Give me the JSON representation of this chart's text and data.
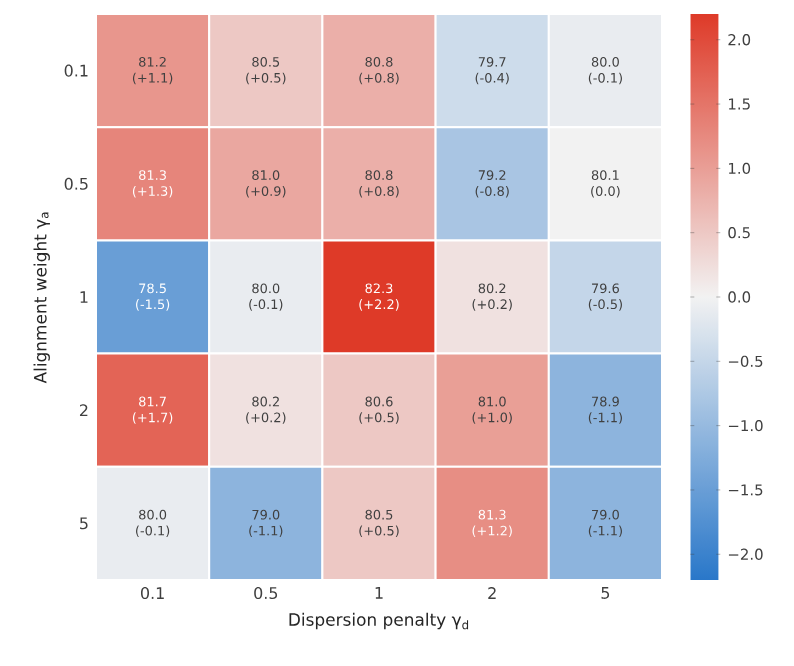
{
  "chart_data": {
    "type": "heatmap",
    "xlabel": "Dispersion penalty γ$_{d}$",
    "ylabel": "Alignment weight γ$_{a}$",
    "categories": [
      "0.1",
      "0.5",
      "1",
      "2",
      "5"
    ],
    "y_categories": [
      "0.1",
      "0.5",
      "1",
      "2",
      "5"
    ],
    "cells": [
      [
        1.1,
        0.5,
        0.8,
        -0.4,
        -0.1
      ],
      [
        1.3,
        0.9,
        0.8,
        -0.8,
        0.0
      ],
      [
        -1.5,
        -0.1,
        2.2,
        0.2,
        -0.5
      ],
      [
        1.7,
        0.2,
        0.5,
        1.0,
        -1.1
      ],
      [
        -0.1,
        -1.1,
        0.5,
        1.2,
        -1.1
      ]
    ],
    "cell_labels": [
      [
        "81.2 (+1.1)",
        "80.5 (+0.5)",
        "80.8 (+0.8)",
        "79.7 (-0.4)",
        "80.0 (-0.1)"
      ],
      [
        "81.3 (+1.3)",
        "81.0 (+0.9)",
        "80.8 (+0.8)",
        "79.2 (-0.8)",
        "80.1 (0.0)"
      ],
      [
        "78.5 (-1.5)",
        "80.0 (-0.1)",
        "82.3 (+2.2)",
        "80.2 (+0.2)",
        "79.6 (-0.5)"
      ],
      [
        "81.7 (+1.7)",
        "80.2 (+0.2)",
        "80.6 (+0.5)",
        "81.0 (+1.0)",
        "78.9 (-1.1)"
      ],
      [
        "80.0 (-0.1)",
        "79.0 (-1.1)",
        "80.5 (+0.5)",
        "81.3 (+1.2)",
        "79.0 (-1.1)"
      ]
    ],
    "clim": [
      -2.2,
      2.2
    ],
    "cticks": [
      {
        "value": -2,
        "label": "−2.0"
      },
      {
        "value": -1.5,
        "label": "−1.5"
      },
      {
        "value": -1,
        "label": "−1.0"
      },
      {
        "value": -0.5,
        "label": "−0.5"
      },
      {
        "value": 0,
        "label": "0.0"
      },
      {
        "value": 0.5,
        "label": "0.5"
      },
      {
        "value": 1,
        "label": "1.0"
      },
      {
        "value": 1.5,
        "label": "1.5"
      },
      {
        "value": 2,
        "label": "2.0"
      }
    ]
  }
}
